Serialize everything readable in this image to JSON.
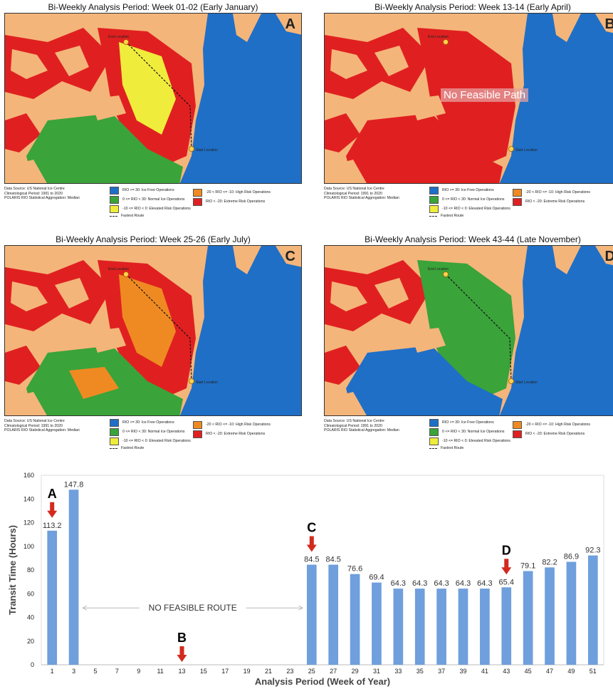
{
  "panels": [
    {
      "title": "Bi-Weekly Analysis Period: Week 01-02 (Early January)",
      "letter": "A",
      "end_label": "End Location",
      "start_label": "Start Location"
    },
    {
      "title": "Bi-Weekly Analysis Period: Week 13-14 (Early April)",
      "letter": "B",
      "end_label": "End Location",
      "start_label": "Start Location",
      "overlay": "No Feasible Path"
    },
    {
      "title": "Bi-Weekly Analysis Period: Week 25-26 (Early July)",
      "letter": "C",
      "end_label": "End Location",
      "start_label": "Start Location"
    },
    {
      "title": "Bi-Weekly Analysis Period: Week 43-44 (Late November)",
      "letter": "D",
      "end_label": "End Location",
      "start_label": "Start Location"
    }
  ],
  "legend": {
    "source": [
      "Data Source: US National Ice Centre",
      "Climatological Period: 1991 to 2020",
      "POLARIS RIO Statistical Aggregation: Median"
    ],
    "items": [
      {
        "label": "RIO >= 30: Ice Free Operations",
        "color": "#1f6fc6"
      },
      {
        "label": "0 <= RIO < 30: Normal Ice Operations",
        "color": "#3aa33a"
      },
      {
        "label": "-10 <= RIO < 0: Elevated Risk Operations",
        "color": "#f0ec3c"
      },
      {
        "label": "-20 < RIO <= -10: High Risk Operations",
        "color": "#ef8a22"
      },
      {
        "label": "RIO < -20: Extreme Risk Operations",
        "color": "#e02020"
      }
    ],
    "route": "Fastest Route"
  },
  "colors": {
    "land": "#f4b57a",
    "bar": "#6f9fdc",
    "arrow": "#d32a1e"
  },
  "chart_data": {
    "type": "bar",
    "xlabel": "Analysis Period (Week of Year)",
    "ylabel": "Transit Time (Hours)",
    "ylim": [
      0,
      160
    ],
    "yticks": [
      0,
      20,
      40,
      60,
      80,
      100,
      120,
      140,
      160
    ],
    "categories": [
      "1",
      "3",
      "5",
      "7",
      "9",
      "11",
      "13",
      "15",
      "17",
      "19",
      "21",
      "23",
      "25",
      "27",
      "29",
      "31",
      "33",
      "35",
      "37",
      "39",
      "41",
      "43",
      "45",
      "47",
      "49",
      "51"
    ],
    "values": [
      113.2,
      147.8,
      null,
      null,
      null,
      null,
      null,
      null,
      null,
      null,
      null,
      null,
      84.5,
      84.5,
      76.6,
      69.4,
      64.3,
      64.3,
      64.3,
      64.3,
      64.3,
      65.4,
      79.1,
      82.2,
      86.9,
      92.3
    ],
    "annotation": "NO FEASIBLE ROUTE",
    "markers": [
      {
        "label": "A",
        "week": "1"
      },
      {
        "label": "B",
        "week": "13"
      },
      {
        "label": "C",
        "week": "25"
      },
      {
        "label": "D",
        "week": "43"
      }
    ]
  }
}
